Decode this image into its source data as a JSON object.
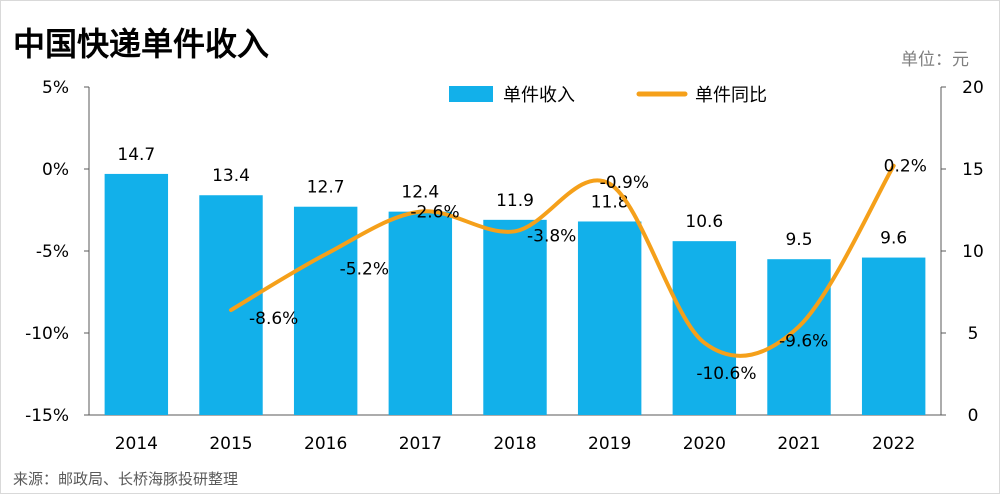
{
  "title": "中国快递单件收入",
  "unit_label": "单位：元",
  "source": "来源：邮政局、长桥海豚投研整理",
  "chart_data": {
    "type": "bar+line",
    "title": "中国快递单件收入",
    "categories": [
      "2014",
      "2015",
      "2016",
      "2017",
      "2018",
      "2019",
      "2020",
      "2021",
      "2022"
    ],
    "series": [
      {
        "name": "单件收入",
        "type": "bar",
        "axis": "right",
        "color": "#12b0ea",
        "values": [
          14.7,
          13.4,
          12.7,
          12.4,
          11.9,
          11.8,
          10.6,
          9.5,
          9.6
        ],
        "labels": [
          "14.7",
          "13.4",
          "12.7",
          "12.4",
          "11.9",
          "11.8",
          "10.6",
          "9.5",
          "9.6"
        ]
      },
      {
        "name": "单件同比",
        "type": "line",
        "smooth": true,
        "axis": "left",
        "color": "#f5a01a",
        "values": [
          null,
          -8.6,
          -5.2,
          -2.6,
          -3.8,
          -0.9,
          -10.6,
          -9.6,
          0.2
        ],
        "labels": [
          "",
          "-8.6%",
          "-5.2%",
          "-2.6%",
          "-3.8%",
          "-0.9%",
          "-10.6%",
          "-9.6%",
          "0.2%"
        ]
      }
    ],
    "left_axis": {
      "ylim": [
        -15,
        5
      ],
      "ticks": [
        "5%",
        "0%",
        "-5%",
        "-10%",
        "-15%"
      ],
      "tick_values": [
        5,
        0,
        -5,
        -10,
        -15
      ]
    },
    "right_axis": {
      "ylim": [
        0,
        20
      ],
      "ticks": [
        "20",
        "15",
        "10",
        "5",
        "0"
      ],
      "tick_values": [
        20,
        15,
        10,
        5,
        0
      ]
    },
    "legend": "top-center",
    "grid": false
  }
}
